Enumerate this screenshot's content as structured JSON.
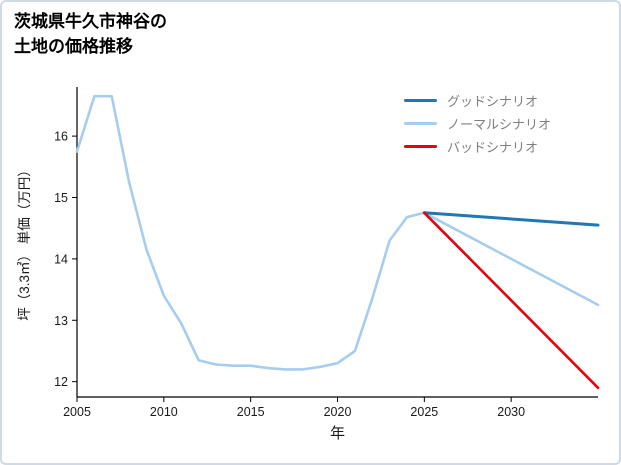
{
  "title": {
    "line1": "茨城県牛久市神谷の",
    "line2": "土地の価格推移"
  },
  "chart_data": {
    "type": "line",
    "title": "茨城県牛久市神谷の土地の価格推移",
    "xlabel": "年",
    "ylabel": "坪（3.3㎡） 単価（万円）",
    "xlim": [
      2005,
      2035
    ],
    "ylim": [
      11.75,
      16.8
    ],
    "x_ticks": [
      2005,
      2010,
      2015,
      2020,
      2025,
      2030
    ],
    "y_ticks": [
      12,
      13,
      14,
      15,
      16
    ],
    "grid": false,
    "legend_position": "upper right",
    "axis_color": "#000000",
    "tick_label_color": "#1a1a1a",
    "legend": [
      {
        "id": "good",
        "label": "グッドシナリオ",
        "color": "#1f77b4"
      },
      {
        "id": "normal",
        "label": "ノーマルシナリオ",
        "color": "#a6cdf0"
      },
      {
        "id": "bad",
        "label": "バッドシナリオ",
        "color": "#e8000b"
      }
    ],
    "series": [
      {
        "id": "normal",
        "name": "ノーマルシナリオ（実績＋予測）",
        "color": "#a6cdf0",
        "width": 2.6,
        "x": [
          2005,
          2006,
          2007,
          2008,
          2009,
          2010,
          2011,
          2012,
          2013,
          2014,
          2015,
          2016,
          2017,
          2018,
          2019,
          2020,
          2021,
          2022,
          2023,
          2024,
          2025,
          2035
        ],
        "y": [
          15.75,
          16.65,
          16.65,
          15.25,
          14.15,
          13.4,
          12.95,
          12.35,
          12.28,
          12.26,
          12.26,
          12.22,
          12.2,
          12.2,
          12.24,
          12.3,
          12.5,
          13.35,
          14.3,
          14.68,
          14.75,
          13.25
        ]
      },
      {
        "id": "good",
        "name": "グッドシナリオ",
        "color": "#1f77b4",
        "width": 3,
        "x": [
          2025,
          2035
        ],
        "y": [
          14.75,
          14.55
        ]
      },
      {
        "id": "bad",
        "name": "バッドシナリオ",
        "color": "#e8000b",
        "width": 2.6,
        "x": [
          2025,
          2035
        ],
        "y": [
          14.75,
          11.9
        ]
      }
    ]
  }
}
